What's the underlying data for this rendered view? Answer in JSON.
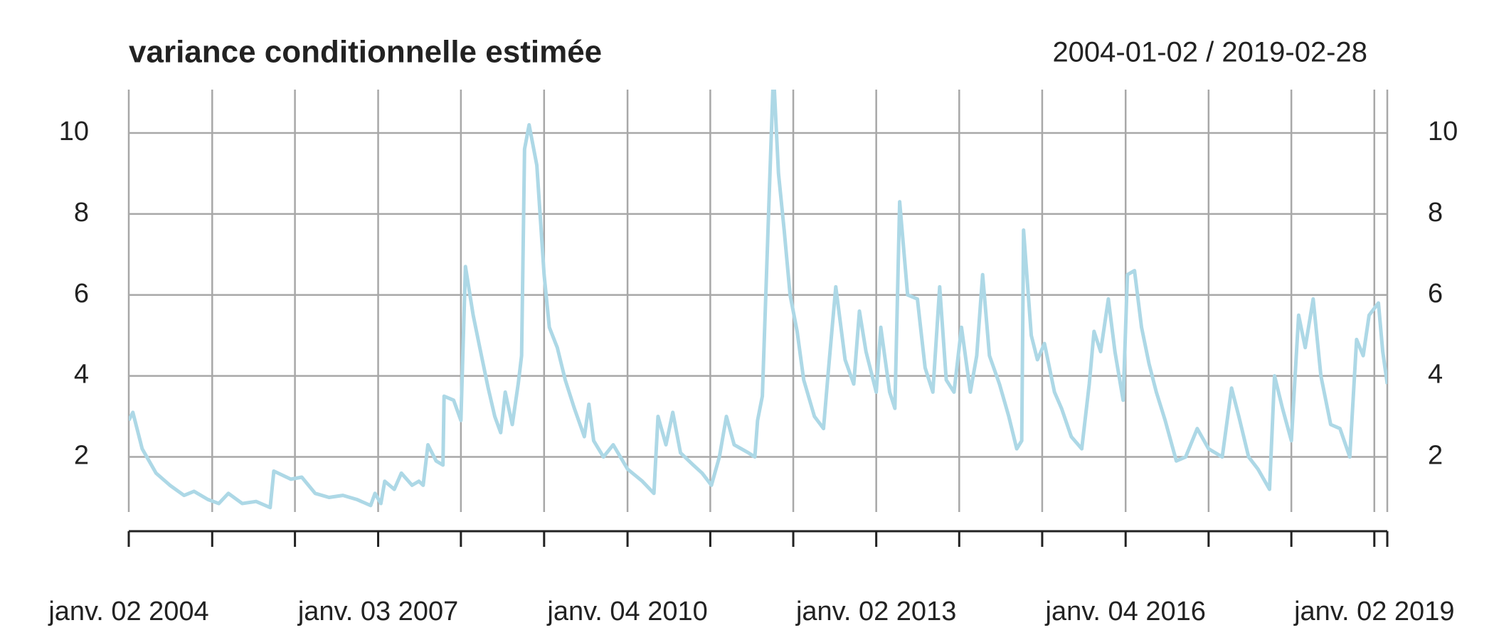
{
  "chart_data": {
    "type": "line",
    "title": "variance conditionnelle estimée",
    "subtitle": "2004-01-02 / 2019-02-28",
    "xlim": [
      "2004-01-02",
      "2019-02-28"
    ],
    "ylim": [
      0.64,
      11.07
    ],
    "yticks": [
      2,
      4,
      6,
      8,
      10
    ],
    "xticks": [
      {
        "value": "2004-01-02",
        "label": "janv. 02 2004"
      },
      {
        "value": "2005-01-03"
      },
      {
        "value": "2006-01-02"
      },
      {
        "value": "2007-01-03",
        "label": "janv. 03 2007"
      },
      {
        "value": "2008-01-02"
      },
      {
        "value": "2009-01-02"
      },
      {
        "value": "2010-01-04",
        "label": "janv. 04 2010"
      },
      {
        "value": "2011-01-03"
      },
      {
        "value": "2012-01-03"
      },
      {
        "value": "2013-01-02",
        "label": "janv. 02 2013"
      },
      {
        "value": "2014-01-02"
      },
      {
        "value": "2015-01-02"
      },
      {
        "value": "2016-01-04",
        "label": "janv. 04 2016"
      },
      {
        "value": "2017-01-03"
      },
      {
        "value": "2018-01-02"
      },
      {
        "value": "2019-01-02",
        "label": "janv. 02 2019"
      },
      {
        "value": "2019-02-28"
      }
    ],
    "grid": true,
    "x": [
      "2004-01-02",
      "2004-01-20",
      "2004-03-01",
      "2004-05-01",
      "2004-07-01",
      "2004-09-01",
      "2004-10-15",
      "2004-12-15",
      "2005-02-01",
      "2005-03-15",
      "2005-05-15",
      "2005-07-15",
      "2005-09-15",
      "2005-10-01",
      "2005-12-15",
      "2006-02-01",
      "2006-04-01",
      "2006-06-01",
      "2006-08-01",
      "2006-10-01",
      "2006-12-01",
      "2006-12-20",
      "2007-01-15",
      "2007-02-01",
      "2007-03-15",
      "2007-04-15",
      "2007-06-01",
      "2007-07-01",
      "2007-07-20",
      "2007-08-10",
      "2007-09-15",
      "2007-10-15",
      "2007-10-20",
      "2007-12-01",
      "2008-01-02",
      "2008-01-22",
      "2008-02-25",
      "2008-03-25",
      "2008-05-01",
      "2008-05-30",
      "2008-06-25",
      "2008-07-15",
      "2008-08-15",
      "2008-09-10",
      "2008-09-25",
      "2008-10-08",
      "2008-10-28",
      "2008-12-01",
      "2009-01-02",
      "2009-01-25",
      "2009-03-01",
      "2009-04-05",
      "2009-05-15",
      "2009-06-28",
      "2009-07-18",
      "2009-08-08",
      "2009-09-20",
      "2009-11-02",
      "2010-01-04",
      "2010-03-10",
      "2010-04-30",
      "2010-05-18",
      "2010-06-22",
      "2010-07-22",
      "2010-08-25",
      "2010-10-20",
      "2010-11-28",
      "2011-01-08",
      "2011-02-12",
      "2011-03-15",
      "2011-04-18",
      "2011-06-20",
      "2011-07-18",
      "2011-07-30",
      "2011-08-20",
      "2011-09-20",
      "2011-10-08",
      "2011-10-30",
      "2011-11-24",
      "2011-12-20",
      "2012-01-20",
      "2012-02-18",
      "2012-04-05",
      "2012-05-15",
      "2012-06-05",
      "2012-07-08",
      "2012-08-18",
      "2012-09-25",
      "2012-10-20",
      "2012-11-18",
      "2013-01-02",
      "2013-01-22",
      "2013-03-02",
      "2013-03-25",
      "2013-04-15",
      "2013-05-20",
      "2013-07-02",
      "2013-08-05",
      "2013-09-08",
      "2013-10-08",
      "2013-11-06",
      "2013-12-10",
      "2014-01-12",
      "2014-02-20",
      "2014-03-20",
      "2014-04-15",
      "2014-05-15",
      "2014-06-28",
      "2014-08-08",
      "2014-09-12",
      "2014-10-04",
      "2014-10-12",
      "2014-11-15",
      "2014-12-12",
      "2015-01-12",
      "2015-02-25",
      "2015-03-28",
      "2015-05-10",
      "2015-06-25",
      "2015-07-28",
      "2015-08-18",
      "2015-09-16",
      "2015-10-20",
      "2015-11-18",
      "2015-12-24",
      "2016-01-12",
      "2016-02-12",
      "2016-03-14",
      "2016-04-16",
      "2016-05-18",
      "2016-06-26",
      "2016-08-14",
      "2016-09-24",
      "2016-11-14",
      "2017-01-03",
      "2017-03-04",
      "2017-04-14",
      "2017-05-16",
      "2017-06-28",
      "2017-08-08",
      "2017-09-28",
      "2017-10-20",
      "2017-11-24",
      "2018-01-02",
      "2018-02-03",
      "2018-03-04",
      "2018-04-08",
      "2018-05-12",
      "2018-06-24",
      "2018-08-04",
      "2018-09-16",
      "2018-10-16",
      "2018-11-14",
      "2018-12-10",
      "2019-01-20",
      "2019-02-08",
      "2019-02-28"
    ],
    "series": [
      {
        "color": "#add8e6",
        "values": [
          2.9,
          3.1,
          2.2,
          1.6,
          1.3,
          1.05,
          1.15,
          0.95,
          0.85,
          1.1,
          0.85,
          0.9,
          0.75,
          1.65,
          1.45,
          1.5,
          1.1,
          1.0,
          1.05,
          0.95,
          0.8,
          1.1,
          0.85,
          1.4,
          1.2,
          1.6,
          1.3,
          1.4,
          1.3,
          2.3,
          1.9,
          1.8,
          3.5,
          3.4,
          2.9,
          6.7,
          5.5,
          4.7,
          3.7,
          3.0,
          2.6,
          3.6,
          2.8,
          3.8,
          4.5,
          9.6,
          10.2,
          9.2,
          6.5,
          5.2,
          4.7,
          3.9,
          3.2,
          2.5,
          3.3,
          2.4,
          2.0,
          2.3,
          1.7,
          1.4,
          1.1,
          3.0,
          2.3,
          3.1,
          2.1,
          1.8,
          1.6,
          1.3,
          2.0,
          3.0,
          2.3,
          2.1,
          2.0,
          2.9,
          3.5,
          8.6,
          11.5,
          9.0,
          7.6,
          6.0,
          5.1,
          3.9,
          3.0,
          2.7,
          4.1,
          6.2,
          4.4,
          3.8,
          5.6,
          4.6,
          3.6,
          5.2,
          3.6,
          3.2,
          8.3,
          6.0,
          5.9,
          4.2,
          3.6,
          6.2,
          3.9,
          3.6,
          5.2,
          3.6,
          4.5,
          6.5,
          4.5,
          3.8,
          3.0,
          2.2,
          2.4,
          7.6,
          5.0,
          4.4,
          4.8,
          3.6,
          3.2,
          2.5,
          2.2,
          3.8,
          5.1,
          4.6,
          5.9,
          4.6,
          3.4,
          6.5,
          6.6,
          5.2,
          4.3,
          3.6,
          2.9,
          1.9,
          2.0,
          2.7,
          2.2,
          2.0,
          3.7,
          3.0,
          2.0,
          1.7,
          1.2,
          4.0,
          3.2,
          2.4,
          5.5,
          4.7,
          5.9,
          4.0,
          2.8,
          2.7,
          2.0,
          4.9,
          4.5,
          5.5,
          5.8,
          4.6,
          3.8
        ]
      }
    ]
  }
}
